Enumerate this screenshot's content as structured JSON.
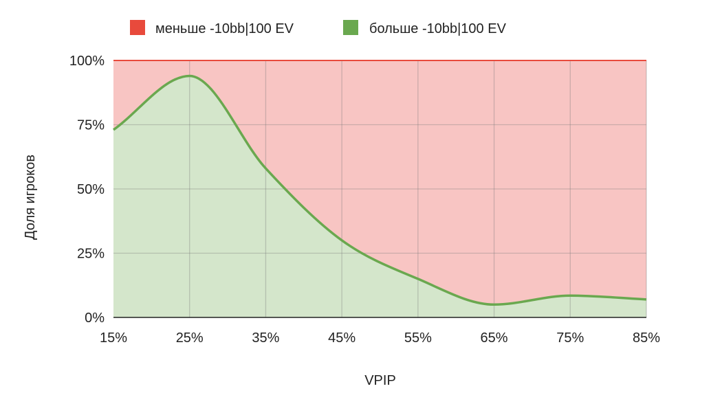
{
  "chart_data": {
    "type": "area",
    "stacked": true,
    "percent_stacked": true,
    "x_ticks": [
      "15%",
      "25%",
      "35%",
      "45%",
      "55%",
      "65%",
      "75%",
      "85%"
    ],
    "y_ticks": [
      "0%",
      "25%",
      "50%",
      "75%",
      "100%"
    ],
    "x": [
      15,
      25,
      35,
      45,
      55,
      65,
      75,
      85
    ],
    "xlim": [
      15,
      85
    ],
    "ylim": [
      0,
      100
    ],
    "xlabel": "VPIP",
    "ylabel": "Доля игроков",
    "grid": true,
    "legend_position": "top",
    "series": [
      {
        "name": "больше -10bb|100 EV",
        "color": "#6aa84f",
        "fill": "#d4e6cb",
        "values": [
          73,
          94,
          58,
          30,
          15,
          5,
          8.5,
          7
        ]
      },
      {
        "name": "меньше -10bb|100 EV",
        "color": "#e84a3c",
        "fill": "#f8c5c3",
        "values": [
          27,
          6,
          42,
          70,
          85,
          95,
          91.5,
          93
        ]
      }
    ]
  }
}
